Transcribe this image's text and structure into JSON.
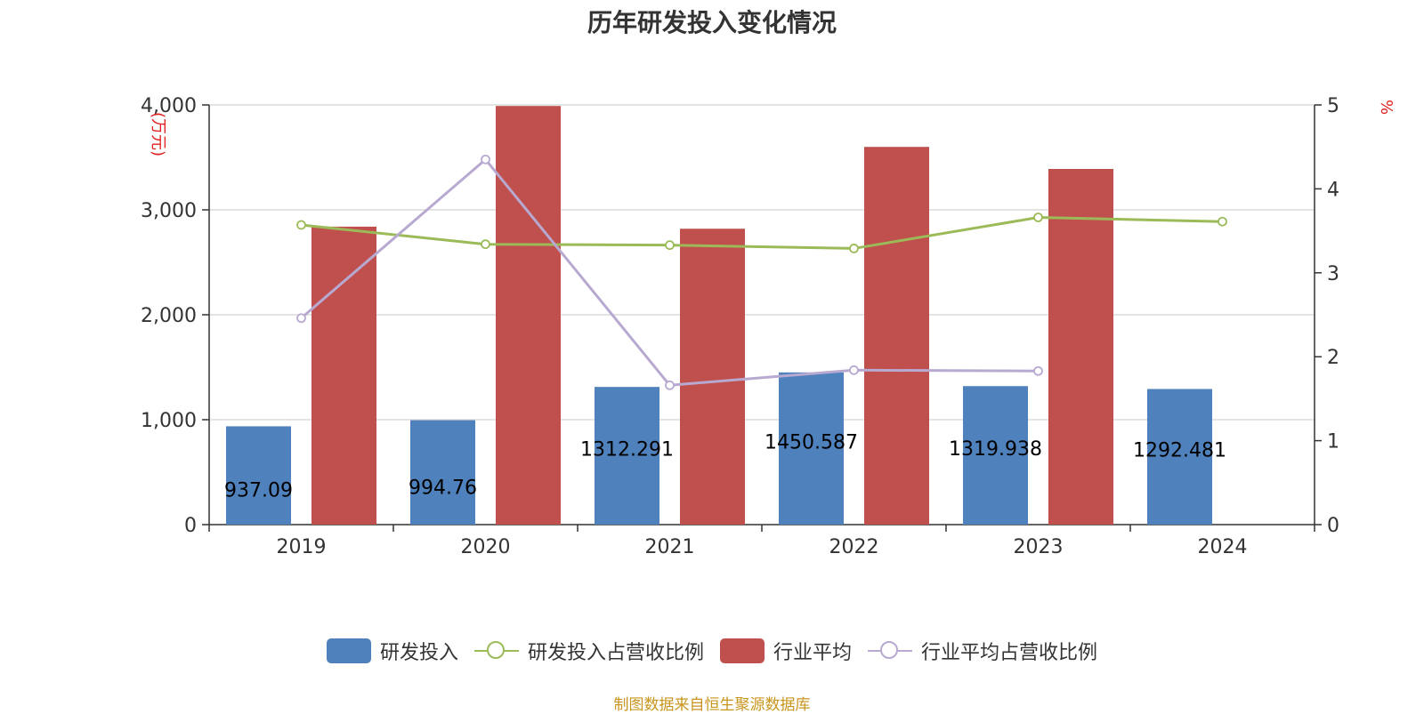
{
  "title": "历年研发投入变化情况",
  "source": "制图数据来自恒生聚源数据库",
  "colors": {
    "rd_bar": "#4f81bd",
    "industry_bar": "#c0504d",
    "rd_ratio_line": "#9bbb59",
    "industry_ratio_line": "#b8a9d1",
    "axis_unit": "#e02020",
    "grid": "#c8c8c8",
    "text": "#333333"
  },
  "chart_data": {
    "type": "bar",
    "title": "历年研发投入变化情况",
    "categories": [
      "2019",
      "2020",
      "2021",
      "2022",
      "2023",
      "2024"
    ],
    "y_left": {
      "unit": "(万元)",
      "ylim": [
        0,
        4000
      ],
      "ticks": [
        0,
        1000,
        2000,
        3000,
        4000
      ],
      "tick_labels": [
        "0",
        "1,000",
        "2,000",
        "3,000",
        "4,000"
      ]
    },
    "y_right": {
      "unit": "%",
      "ylim": [
        0,
        5
      ],
      "ticks": [
        0,
        1,
        2,
        3,
        4,
        5
      ],
      "tick_labels": [
        "0",
        "1",
        "2",
        "3",
        "4",
        "5"
      ]
    },
    "grid": true,
    "legend_position": "bottom",
    "series": [
      {
        "name": "研发投入",
        "type": "bar",
        "axis": "left",
        "values": [
          937.09,
          994.76,
          1312.291,
          1450.587,
          1319.938,
          1292.481
        ],
        "data_labels": [
          "937.09",
          "994.76",
          "1312.291",
          "1450.587",
          "1319.938",
          "1292.481"
        ]
      },
      {
        "name": "研发投入占营收比例",
        "type": "line",
        "axis": "right",
        "values": [
          3.57,
          3.34,
          3.33,
          3.29,
          3.66,
          3.61
        ]
      },
      {
        "name": "行业平均",
        "type": "bar",
        "axis": "left",
        "values": [
          2840,
          3990,
          2820,
          3600,
          3390,
          null
        ]
      },
      {
        "name": "行业平均占营收比例",
        "type": "line",
        "axis": "right",
        "values": [
          2.46,
          4.35,
          1.66,
          1.84,
          1.83,
          null
        ]
      }
    ]
  }
}
